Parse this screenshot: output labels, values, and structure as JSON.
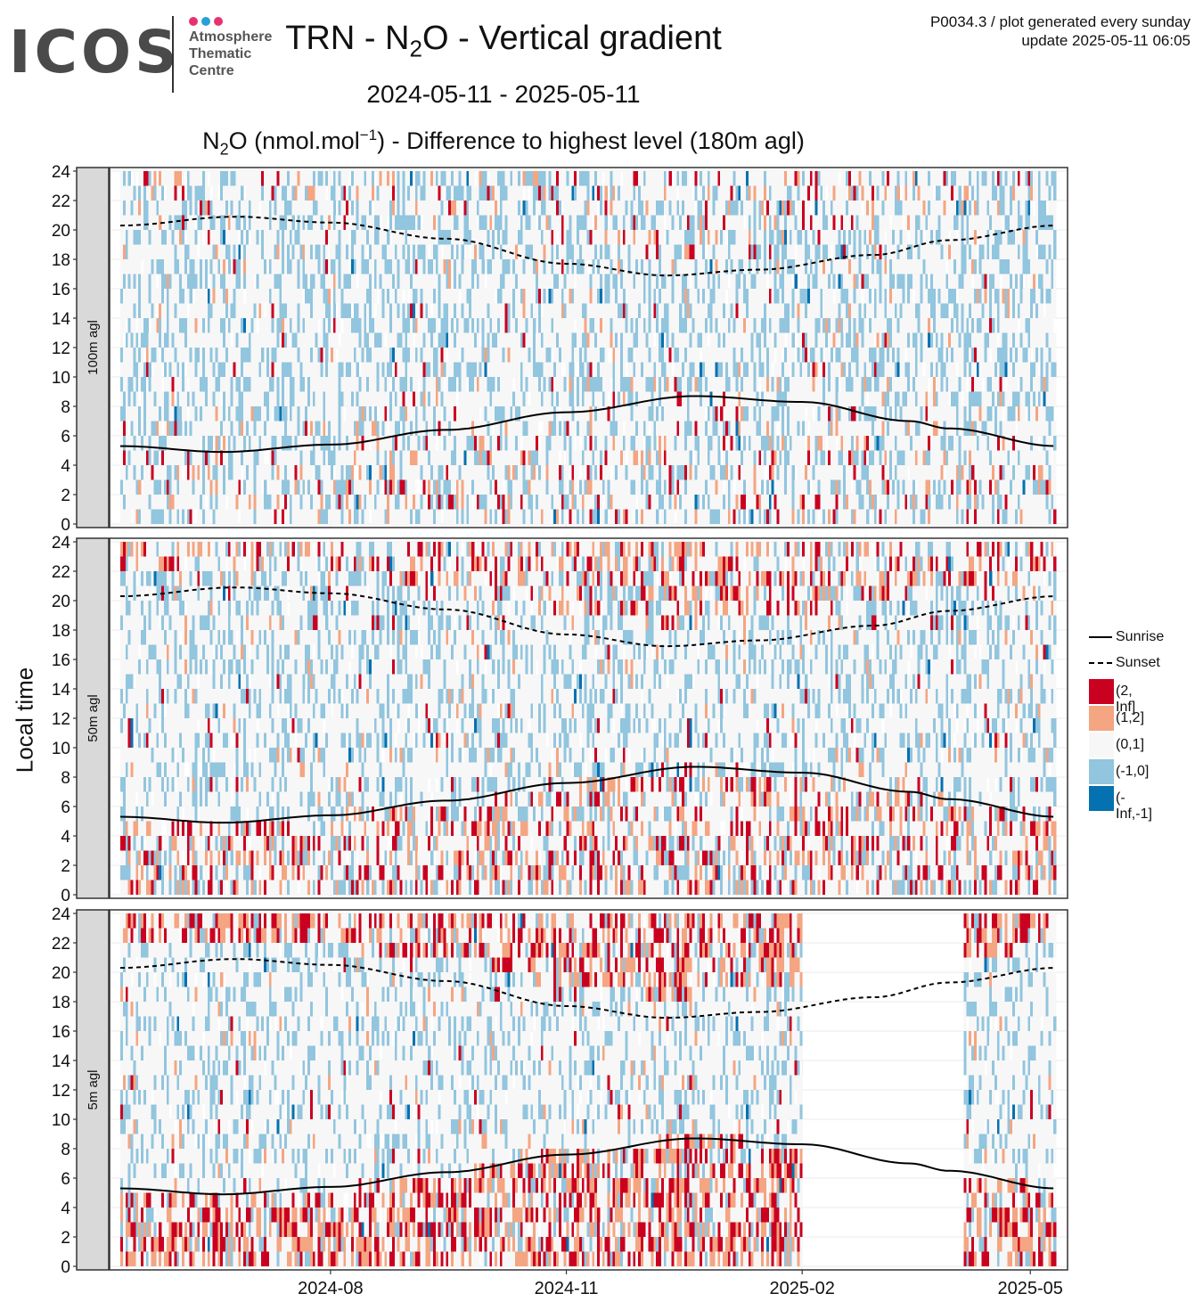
{
  "logo": {
    "name": "ICOS",
    "line1": "Atmosphere",
    "line2": "Thematic",
    "line3": "Centre",
    "dot_colors": [
      "#e6336f",
      "#2a9fd8",
      "#e6336f"
    ]
  },
  "header": {
    "title_pre": "TRN - N",
    "title_sub": "2",
    "title_post": "O - Vertical gradient",
    "date_range": "2024-05-11 - 2025-05-11",
    "subtitle_pre": "N",
    "subtitle_sub": "2",
    "subtitle_mid": "O (nmol.mol",
    "subtitle_sup": "−1",
    "subtitle_post": ") - Difference to highest level (180m agl)",
    "meta_line1": "P0034.3 / plot generated every sunday",
    "meta_line2": "update  2025-05-11 06:05"
  },
  "chart_data": {
    "type": "heatmap",
    "x_axis": {
      "range": [
        "2024-05-11",
        "2025-05-11"
      ],
      "ticks": [
        "2024-08",
        "2024-11",
        "2025-02",
        "2025-05"
      ]
    },
    "y_axis": {
      "label": "Local time",
      "range": [
        0,
        24
      ],
      "ticks": [
        0,
        2,
        4,
        6,
        8,
        10,
        12,
        14,
        16,
        18,
        20,
        22,
        24
      ]
    },
    "panels": [
      {
        "label": "100m agl"
      },
      {
        "label": "50m agl"
      },
      {
        "label": "5m agl"
      }
    ],
    "classes": [
      {
        "label": "(2, Inf]",
        "color": "#ca0020"
      },
      {
        "label": "(1,2]",
        "color": "#f4a582"
      },
      {
        "label": "(0,1]",
        "color": "#f7f7f7"
      },
      {
        "label": "(-1,0]",
        "color": "#92c5de"
      },
      {
        "label": "(-Inf,-1]",
        "color": "#0571b0"
      }
    ],
    "lines": [
      {
        "name": "Sunrise",
        "style": "solid",
        "points": [
          [
            "2024-05-11",
            5.3
          ],
          [
            "2024-06-20",
            4.9
          ],
          [
            "2024-08-01",
            5.4
          ],
          [
            "2024-09-15",
            6.4
          ],
          [
            "2024-11-01",
            7.6
          ],
          [
            "2024-12-21",
            8.7
          ],
          [
            "2025-02-01",
            8.3
          ],
          [
            "2025-03-15",
            7.0
          ],
          [
            "2025-03-30",
            6.5
          ],
          [
            "2025-05-11",
            5.3
          ]
        ]
      },
      {
        "name": "Sunset",
        "style": "dashed",
        "points": [
          [
            "2024-05-11",
            20.3
          ],
          [
            "2024-06-25",
            20.9
          ],
          [
            "2024-08-01",
            20.5
          ],
          [
            "2024-09-15",
            19.4
          ],
          [
            "2024-11-01",
            17.7
          ],
          [
            "2024-12-10",
            16.9
          ],
          [
            "2025-01-15",
            17.3
          ],
          [
            "2025-03-01",
            18.3
          ],
          [
            "2025-03-30",
            19.3
          ],
          [
            "2025-05-11",
            20.3
          ]
        ]
      }
    ],
    "data_gaps": [
      {
        "panel": "5m agl",
        "from": "2025-02-01",
        "to": "2025-04-05"
      }
    ]
  }
}
